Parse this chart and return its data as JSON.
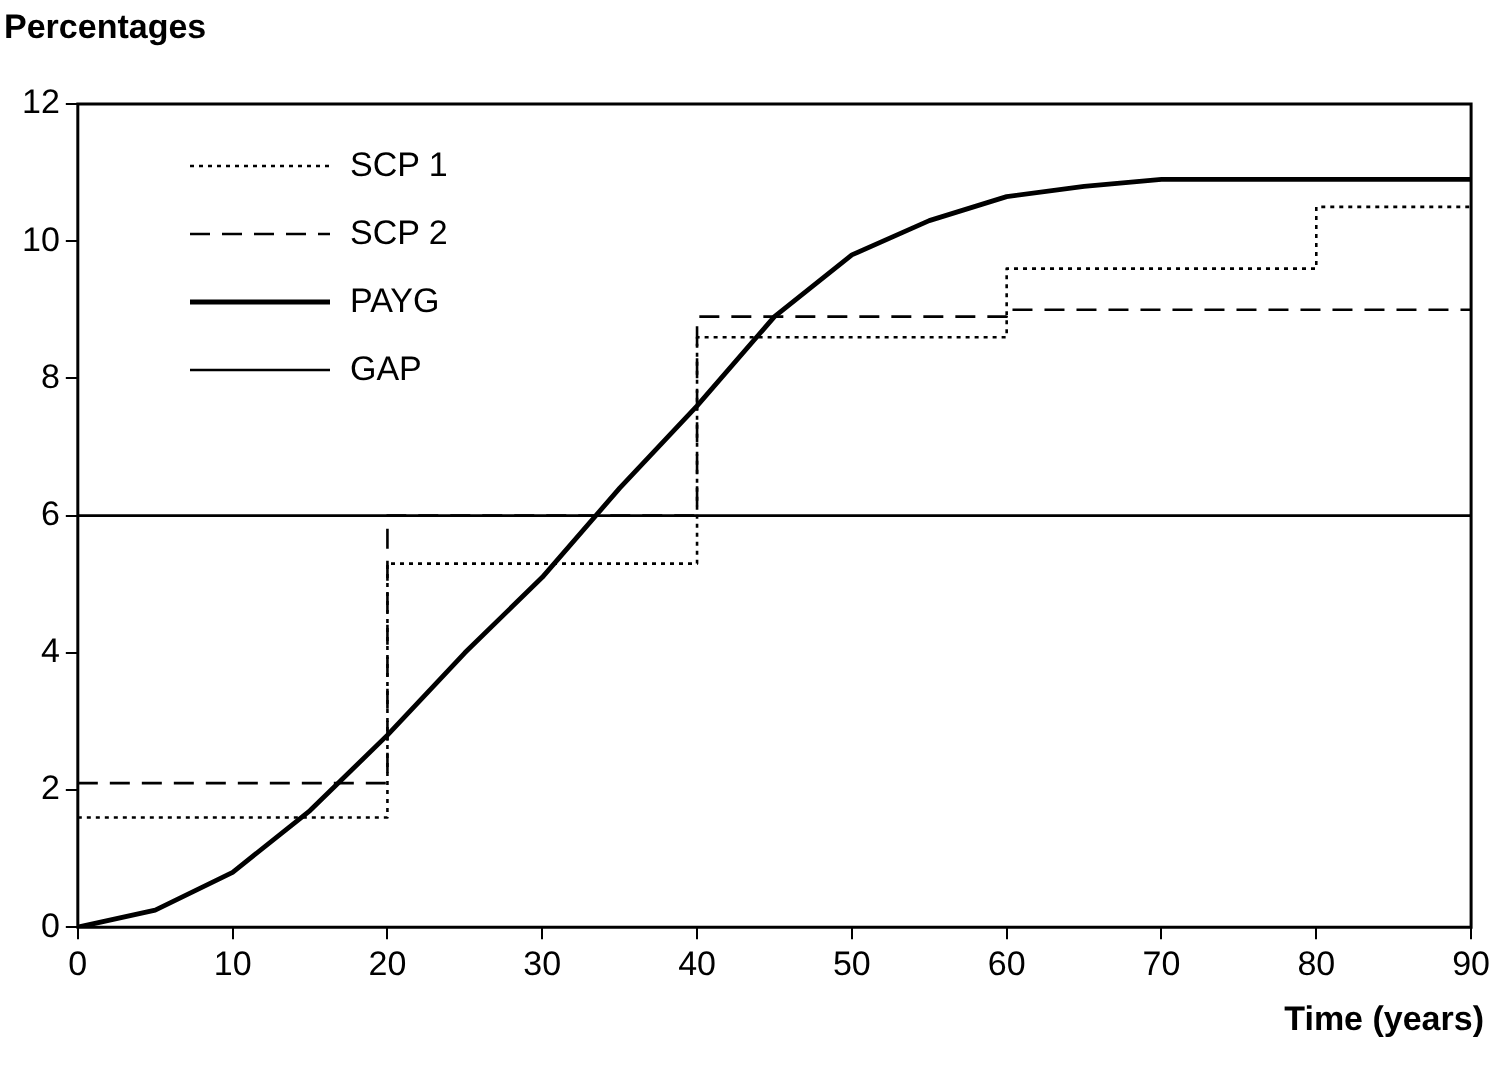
{
  "chart_data": {
    "type": "line",
    "ylabel": "Percentages",
    "xlabel": "Time (years)",
    "xlim": [
      0,
      90
    ],
    "xticks": [
      0,
      10,
      20,
      30,
      40,
      50,
      60,
      70,
      80,
      90
    ],
    "ylim": [
      0,
      12
    ],
    "yticks": [
      0,
      2,
      4,
      6,
      8,
      10,
      12
    ],
    "grid": false,
    "legend": "top left",
    "marker": "none",
    "series": [
      {
        "name": "SCP 1",
        "type": "step",
        "color": "#000000",
        "line_style": "dotted",
        "x": [
          0,
          20,
          40,
          60,
          80,
          90
        ],
        "values": [
          1.6,
          5.3,
          8.6,
          9.6,
          10.5,
          10.5
        ]
      },
      {
        "name": "SCP 2",
        "type": "step",
        "color": "#000000",
        "line_style": "dashed",
        "x": [
          0,
          20,
          40,
          60,
          90
        ],
        "values": [
          2.1,
          6.0,
          8.9,
          9.0,
          9.0
        ]
      },
      {
        "name": "PAYG",
        "type": "line",
        "color": "#000000",
        "line_style": "solid",
        "x": [
          0,
          5,
          10,
          15,
          20,
          25,
          30,
          35,
          40,
          45,
          50,
          55,
          60,
          65,
          70,
          80,
          90
        ],
        "values": [
          0,
          0.25,
          0.8,
          1.7,
          2.8,
          4.0,
          5.1,
          6.4,
          7.6,
          8.9,
          9.8,
          10.3,
          10.65,
          10.8,
          10.9,
          10.9,
          10.9
        ]
      },
      {
        "name": "GAP",
        "type": "line",
        "color": "#000000",
        "line_style": "solid",
        "x": [
          0,
          90
        ],
        "values": [
          6,
          6
        ]
      }
    ]
  }
}
